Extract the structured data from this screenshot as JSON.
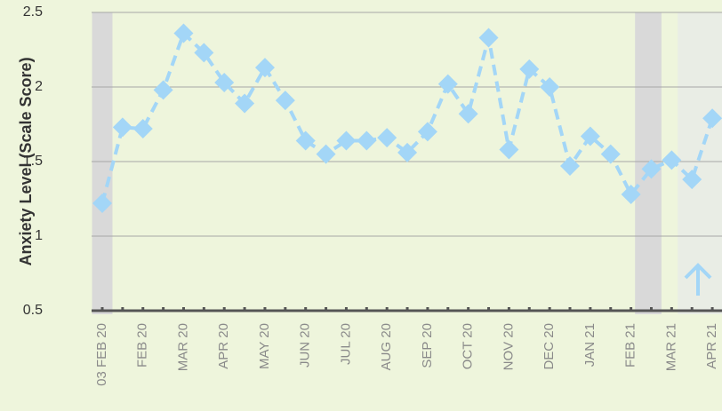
{
  "chart_data": {
    "type": "line",
    "y_label": "Anxiety Level (Scale Score)",
    "categories": [
      "03 FEB 20",
      null,
      "FEB 20",
      null,
      "MAR 20",
      null,
      "APR 20",
      null,
      "MAY 20",
      null,
      "JUN 20",
      null,
      "JUL 20",
      null,
      "AUG 20",
      null,
      "SEP 20",
      null,
      "OCT 20",
      null,
      "NOV 20",
      null,
      "DEC 20",
      null,
      "JAN 21",
      null,
      "FEB 21",
      null,
      "MAR 21",
      null,
      "APR 21"
    ],
    "series": [
      {
        "color": "#a3d6f7",
        "values": [
          1.22,
          1.73,
          1.72,
          1.98,
          2.36,
          2.23,
          2.03,
          1.89,
          2.13,
          1.91,
          1.64,
          1.55,
          1.64,
          1.64,
          1.66,
          1.56,
          1.7,
          2.02,
          1.82,
          2.33,
          1.58,
          2.12,
          2.0,
          1.47,
          1.67,
          1.55,
          1.28,
          1.45,
          1.51,
          1.38,
          1.79
        ]
      }
    ],
    "ylim": [
      0.5,
      2.5
    ],
    "yticks": [
      0.5,
      1,
      1.5,
      2,
      2.5
    ],
    "grid": true,
    "bands": [
      {
        "from": -0.5,
        "to": 0.5,
        "color": "#d9d9d9"
      },
      {
        "from": 26.2,
        "to": 27.5,
        "color": "#d9d9d9"
      },
      {
        "from": 28.3,
        "to": 31,
        "color": "#e9ede5"
      }
    ]
  }
}
